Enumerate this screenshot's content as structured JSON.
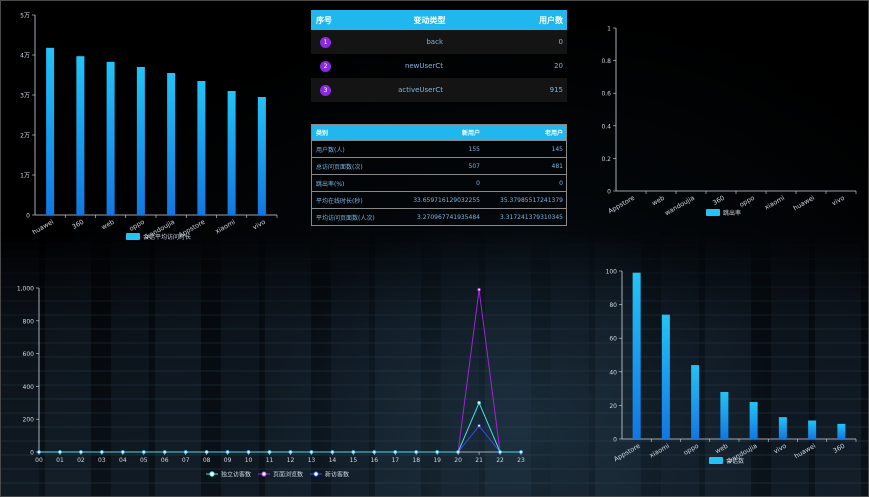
{
  "colors": {
    "accent": "#1fb7ee",
    "bar_top": "#23c3f7",
    "bar_bottom": "#1277e1",
    "series_cyan": "#3fe0ee",
    "series_purple": "#a023d9",
    "series_blue": "#3a49e8"
  },
  "table_top": {
    "headers": [
      "序号",
      "变动类型",
      "用户数"
    ],
    "rows": [
      {
        "idx": "1",
        "type": "back",
        "count": "0"
      },
      {
        "idx": "2",
        "type": "newUserCt",
        "count": "20"
      },
      {
        "idx": "3",
        "type": "activeUserCt",
        "count": "915"
      }
    ]
  },
  "table_stats": {
    "headers": [
      "类别",
      "新用户",
      "老用户"
    ],
    "rows": [
      {
        "cat": "用户数(人)",
        "new": "155",
        "old": "145"
      },
      {
        "cat": "总访问页面数(次)",
        "new": "507",
        "old": "481"
      },
      {
        "cat": "跳出率(%)",
        "new": "0",
        "old": "0"
      },
      {
        "cat": "平均在线时长(秒)",
        "new": "33.659716129032255",
        "old": "35.37985517241379"
      },
      {
        "cat": "平均访问页面数(人次)",
        "new": "3.270967741935484",
        "old": "3.317241379310345"
      }
    ]
  },
  "chart_data": [
    {
      "id": "session_duration",
      "type": "bar",
      "categories": [
        "huawei",
        "360",
        "web",
        "oppo",
        "wandoujia",
        "Appstore",
        "xiaomi",
        "vivo"
      ],
      "values": [
        41800,
        39700,
        38300,
        37000,
        35500,
        33500,
        31000,
        29500
      ],
      "yticks": [
        "0",
        "1万",
        "2万",
        "3万",
        "4万",
        "5万"
      ],
      "ylim": [
        0,
        50000
      ],
      "legend": "会话平均访问时长",
      "legend_position": "bottom"
    },
    {
      "id": "bounce_rate",
      "type": "bar",
      "categories": [
        "Appstore",
        "web",
        "wandoujia",
        "360",
        "oppo",
        "xiaomi",
        "huawei",
        "vivo"
      ],
      "values": [
        0,
        0,
        0,
        0,
        0,
        0,
        0,
        0
      ],
      "yticks": [
        "0",
        "0.2",
        "0.4",
        "0.6",
        "0.8",
        "1"
      ],
      "ylim": [
        0,
        1
      ],
      "legend": "跳出率",
      "legend_position": "bottom"
    },
    {
      "id": "hourly",
      "type": "line",
      "categories": [
        "00",
        "01",
        "02",
        "03",
        "04",
        "05",
        "06",
        "07",
        "08",
        "09",
        "10",
        "11",
        "12",
        "13",
        "14",
        "15",
        "16",
        "17",
        "18",
        "19",
        "20",
        "21",
        "22",
        "23"
      ],
      "series": [
        {
          "name": "独立访客数",
          "color": "#3fe0ee",
          "values": [
            0,
            0,
            0,
            0,
            0,
            0,
            0,
            0,
            0,
            0,
            0,
            0,
            0,
            0,
            0,
            0,
            0,
            0,
            0,
            0,
            0,
            300,
            0,
            0
          ]
        },
        {
          "name": "页面浏览数",
          "color": "#a023d9",
          "values": [
            0,
            0,
            0,
            0,
            0,
            0,
            0,
            0,
            0,
            0,
            0,
            0,
            0,
            0,
            0,
            0,
            0,
            0,
            0,
            0,
            0,
            990,
            0,
            0
          ]
        },
        {
          "name": "新访客数",
          "color": "#3a49e8",
          "values": [
            0,
            0,
            0,
            0,
            0,
            0,
            0,
            0,
            0,
            0,
            0,
            0,
            0,
            0,
            0,
            0,
            0,
            0,
            0,
            0,
            0,
            160,
            0,
            0
          ]
        }
      ],
      "yticks": [
        "0",
        "200",
        "400",
        "600",
        "800",
        "1,000"
      ],
      "ylim": [
        0,
        1000
      ],
      "legend_position": "bottom"
    },
    {
      "id": "visits",
      "type": "bar",
      "categories": [
        "Appstore",
        "xiaomi",
        "oppo",
        "web",
        "wandoujia",
        "vivo",
        "huawei",
        "360"
      ],
      "values": [
        99,
        74,
        44,
        28,
        22,
        13,
        11,
        9
      ],
      "yticks": [
        "0",
        "20",
        "40",
        "60",
        "80",
        "100"
      ],
      "ylim": [
        0,
        100
      ],
      "legend": "会话数",
      "legend_position": "bottom"
    }
  ]
}
